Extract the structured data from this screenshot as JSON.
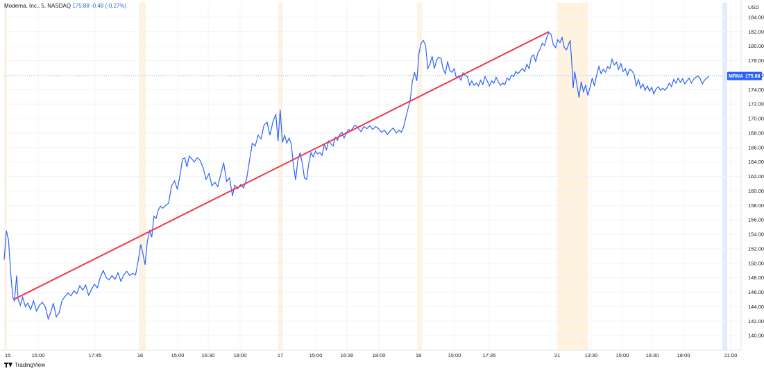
{
  "legend": {
    "symbol": "Moderna, Inc.",
    "interval": "5",
    "exchange": "NASDAQ",
    "close": "175.88",
    "change": "-0.48",
    "change_pct": "(-0.27%)"
  },
  "footer": {
    "brand": "TradingView"
  },
  "price_tag": {
    "symbol": "MRNA",
    "value": "175.88"
  },
  "currency": "USD",
  "colors": {
    "line": "#2962ff",
    "trend": "#f23645",
    "session": "#fff3e0",
    "session_blue": "#e3ecff",
    "grid": "#f0f3fa"
  },
  "chart_data": {
    "type": "line",
    "ylim": [
      138,
      186
    ],
    "yticks": [
      "140.00",
      "142.00",
      "144.00",
      "146.00",
      "148.00",
      "150.00",
      "152.00",
      "154.00",
      "156.00",
      "158.00",
      "160.00",
      "162.00",
      "164.00",
      "166.00",
      "168.00",
      "170.00",
      "172.00",
      "174.00",
      "176.00",
      "178.00",
      "180.00",
      "182.00",
      "184.00"
    ],
    "xticks": [
      "15",
      "15:00",
      "17:45",
      "16",
      "15:00",
      "16:30",
      "18:00",
      "17",
      "15:00",
      "16:30",
      "18:00",
      "18",
      "15:00",
      "17:35",
      "21",
      "13:30",
      "15:00",
      "16:30",
      "18:00",
      "21:00"
    ],
    "xrange": [
      0,
      1
    ],
    "series": [
      {
        "values": [
          [
            0.0,
            150.5
          ],
          [
            0.003,
            154.5
          ],
          [
            0.006,
            153.2
          ],
          [
            0.009,
            148.5
          ],
          [
            0.012,
            145.2
          ],
          [
            0.014,
            144.8
          ],
          [
            0.017,
            148.3
          ],
          [
            0.019,
            145.0
          ],
          [
            0.022,
            144.2
          ],
          [
            0.025,
            145.3
          ],
          [
            0.029,
            144.0
          ],
          [
            0.032,
            144.5
          ],
          [
            0.036,
            143.6
          ],
          [
            0.04,
            144.8
          ],
          [
            0.044,
            143.4
          ],
          [
            0.048,
            144.2
          ],
          [
            0.052,
            144.6
          ],
          [
            0.056,
            144.0
          ],
          [
            0.06,
            142.3
          ],
          [
            0.064,
            143.4
          ],
          [
            0.067,
            144.5
          ],
          [
            0.071,
            142.6
          ],
          [
            0.075,
            143.2
          ],
          [
            0.079,
            144.9
          ],
          [
            0.083,
            145.4
          ],
          [
            0.087,
            145.9
          ],
          [
            0.091,
            145.5
          ],
          [
            0.095,
            146.2
          ],
          [
            0.099,
            145.8
          ],
          [
            0.103,
            146.9
          ],
          [
            0.107,
            146.3
          ],
          [
            0.111,
            147.0
          ],
          [
            0.115,
            145.6
          ],
          [
            0.119,
            146.4
          ],
          [
            0.123,
            147.1
          ],
          [
            0.127,
            146.6
          ],
          [
            0.131,
            148.1
          ],
          [
            0.135,
            149.0
          ],
          [
            0.139,
            148.0
          ],
          [
            0.143,
            147.7
          ],
          [
            0.147,
            148.3
          ],
          [
            0.151,
            147.8
          ],
          [
            0.155,
            148.7
          ],
          [
            0.159,
            147.5
          ],
          [
            0.163,
            148.4
          ],
          [
            0.167,
            148.9
          ],
          [
            0.171,
            148.3
          ],
          [
            0.175,
            148.6
          ],
          [
            0.179,
            148.4
          ],
          [
            0.183,
            150.6
          ],
          [
            0.186,
            152.6
          ],
          [
            0.189,
            151.3
          ],
          [
            0.192,
            149.8
          ],
          [
            0.195,
            153.0
          ],
          [
            0.198,
            154.5
          ],
          [
            0.201,
            153.6
          ],
          [
            0.204,
            156.5
          ],
          [
            0.207,
            156.2
          ],
          [
            0.21,
            157.4
          ],
          [
            0.213,
            157.9
          ],
          [
            0.216,
            157.6
          ],
          [
            0.22,
            158.0
          ],
          [
            0.224,
            158.3
          ],
          [
            0.228,
            160.7
          ],
          [
            0.232,
            161.4
          ],
          [
            0.236,
            160.2
          ],
          [
            0.24,
            162.5
          ],
          [
            0.243,
            164.4
          ],
          [
            0.246,
            164.6
          ],
          [
            0.249,
            163.3
          ],
          [
            0.252,
            164.8
          ],
          [
            0.255,
            164.5
          ],
          [
            0.259,
            164.0
          ],
          [
            0.263,
            164.6
          ],
          [
            0.267,
            164.2
          ],
          [
            0.271,
            163.2
          ],
          [
            0.275,
            161.6
          ],
          [
            0.279,
            162.4
          ],
          [
            0.283,
            160.7
          ],
          [
            0.287,
            161.2
          ],
          [
            0.291,
            160.6
          ],
          [
            0.295,
            162.3
          ],
          [
            0.299,
            163.9
          ],
          [
            0.303,
            161.3
          ],
          [
            0.307,
            161.8
          ],
          [
            0.311,
            159.3
          ],
          [
            0.314,
            160.8
          ],
          [
            0.318,
            160.3
          ],
          [
            0.322,
            160.9
          ],
          [
            0.326,
            160.4
          ],
          [
            0.33,
            161.5
          ],
          [
            0.334,
            164.1
          ],
          [
            0.338,
            166.6
          ],
          [
            0.342,
            166.2
          ],
          [
            0.346,
            167.7
          ],
          [
            0.35,
            167.2
          ],
          [
            0.354,
            169.1
          ],
          [
            0.358,
            169.5
          ],
          [
            0.362,
            167.7
          ],
          [
            0.366,
            169.5
          ],
          [
            0.37,
            170.6
          ],
          [
            0.373,
            166.9
          ],
          [
            0.376,
            171.2
          ],
          [
            0.379,
            166.7
          ],
          [
            0.382,
            167.7
          ],
          [
            0.385,
            166.6
          ],
          [
            0.388,
            167.3
          ],
          [
            0.391,
            166.5
          ],
          [
            0.394,
            163.5
          ],
          [
            0.397,
            161.5
          ],
          [
            0.4,
            164.2
          ],
          [
            0.403,
            165.3
          ],
          [
            0.406,
            163.9
          ],
          [
            0.409,
            161.8
          ],
          [
            0.412,
            161.6
          ],
          [
            0.415,
            163.9
          ],
          [
            0.418,
            165.3
          ],
          [
            0.421,
            164.7
          ],
          [
            0.424,
            165.5
          ],
          [
            0.427,
            165.1
          ],
          [
            0.43,
            165.3
          ],
          [
            0.433,
            164.9
          ],
          [
            0.436,
            166.4
          ],
          [
            0.439,
            165.7
          ],
          [
            0.442,
            166.9
          ],
          [
            0.445,
            166.5
          ],
          [
            0.448,
            166.2
          ],
          [
            0.451,
            167.4
          ],
          [
            0.454,
            167.0
          ],
          [
            0.457,
            167.8
          ],
          [
            0.46,
            168.1
          ],
          [
            0.463,
            167.3
          ],
          [
            0.466,
            168.0
          ],
          [
            0.469,
            168.5
          ],
          [
            0.472,
            168.3
          ],
          [
            0.475,
            168.7
          ],
          [
            0.478,
            169.1
          ],
          [
            0.482,
            168.7
          ],
          [
            0.486,
            168.2
          ],
          [
            0.49,
            168.9
          ],
          [
            0.494,
            168.6
          ],
          [
            0.498,
            169.0
          ],
          [
            0.502,
            168.5
          ],
          [
            0.506,
            168.9
          ],
          [
            0.51,
            168.6
          ],
          [
            0.514,
            168.1
          ],
          [
            0.518,
            168.4
          ],
          [
            0.522,
            167.8
          ],
          [
            0.526,
            168.3
          ],
          [
            0.53,
            168.7
          ],
          [
            0.534,
            168.0
          ],
          [
            0.538,
            168.4
          ],
          [
            0.541,
            168.1
          ],
          [
            0.544,
            168.8
          ],
          [
            0.547,
            170.1
          ],
          [
            0.55,
            171.3
          ],
          [
            0.553,
            172.5
          ],
          [
            0.556,
            175.1
          ],
          [
            0.559,
            176.4
          ],
          [
            0.562,
            175.2
          ],
          [
            0.565,
            179.0
          ],
          [
            0.568,
            180.4
          ],
          [
            0.571,
            180.8
          ],
          [
            0.574,
            180.1
          ],
          [
            0.577,
            176.9
          ],
          [
            0.58,
            177.5
          ],
          [
            0.583,
            178.6
          ],
          [
            0.586,
            176.9
          ],
          [
            0.589,
            178.1
          ],
          [
            0.592,
            178.5
          ],
          [
            0.595,
            178.3
          ],
          [
            0.598,
            176.8
          ],
          [
            0.601,
            176.2
          ],
          [
            0.604,
            177.9
          ],
          [
            0.607,
            176.6
          ],
          [
            0.61,
            176.4
          ],
          [
            0.613,
            176.9
          ],
          [
            0.616,
            175.6
          ],
          [
            0.619,
            175.9
          ],
          [
            0.622,
            175.3
          ],
          [
            0.625,
            176.3
          ],
          [
            0.628,
            176.0
          ],
          [
            0.631,
            175.8
          ],
          [
            0.634,
            174.6
          ],
          [
            0.637,
            175.2
          ],
          [
            0.64,
            174.6
          ],
          [
            0.643,
            174.9
          ],
          [
            0.646,
            174.5
          ],
          [
            0.649,
            175.3
          ],
          [
            0.652,
            174.7
          ],
          [
            0.655,
            175.8
          ],
          [
            0.658,
            175.2
          ],
          [
            0.661,
            174.5
          ],
          [
            0.664,
            175.2
          ],
          [
            0.667,
            174.9
          ],
          [
            0.67,
            175.7
          ],
          [
            0.673,
            175.1
          ],
          [
            0.676,
            174.6
          ],
          [
            0.679,
            174.9
          ],
          [
            0.682,
            174.7
          ],
          [
            0.685,
            175.6
          ],
          [
            0.688,
            175.3
          ],
          [
            0.691,
            176.0
          ],
          [
            0.694,
            175.8
          ],
          [
            0.697,
            176.5
          ],
          [
            0.7,
            176.2
          ],
          [
            0.703,
            176.6
          ],
          [
            0.706,
            176.9
          ],
          [
            0.709,
            176.5
          ],
          [
            0.712,
            177.5
          ],
          [
            0.715,
            176.9
          ],
          [
            0.718,
            178.5
          ],
          [
            0.721,
            178.8
          ],
          [
            0.724,
            177.9
          ],
          [
            0.727,
            179.1
          ],
          [
            0.73,
            179.6
          ],
          [
            0.733,
            180.4
          ],
          [
            0.736,
            180.1
          ],
          [
            0.739,
            181.2
          ],
          [
            0.742,
            181.9
          ],
          [
            0.745,
            181.6
          ],
          [
            0.748,
            180.2
          ],
          [
            0.751,
            179.8
          ],
          [
            0.754,
            180.9
          ],
          [
            0.757,
            180.5
          ],
          [
            0.76,
            181.2
          ],
          [
            0.763,
            179.8
          ],
          [
            0.766,
            179.5
          ],
          [
            0.769,
            180.3
          ],
          [
            0.771,
            180.8
          ],
          [
            0.773,
            178.0
          ],
          [
            0.775,
            174.2
          ],
          [
            0.777,
            176.5
          ],
          [
            0.78,
            174.8
          ],
          [
            0.783,
            172.9
          ],
          [
            0.786,
            175.1
          ],
          [
            0.789,
            173.7
          ],
          [
            0.792,
            174.6
          ],
          [
            0.795,
            173.2
          ],
          [
            0.798,
            174.3
          ],
          [
            0.801,
            175.6
          ],
          [
            0.804,
            174.5
          ],
          [
            0.807,
            176.0
          ],
          [
            0.81,
            177.2
          ],
          [
            0.813,
            176.2
          ],
          [
            0.816,
            176.8
          ],
          [
            0.819,
            176.4
          ],
          [
            0.822,
            177.2
          ],
          [
            0.825,
            176.9
          ],
          [
            0.828,
            178.2
          ],
          [
            0.831,
            177.4
          ],
          [
            0.834,
            177.8
          ],
          [
            0.837,
            176.8
          ],
          [
            0.84,
            177.6
          ],
          [
            0.843,
            176.5
          ],
          [
            0.846,
            176.9
          ],
          [
            0.849,
            176.0
          ],
          [
            0.852,
            176.8
          ],
          [
            0.855,
            176.6
          ],
          [
            0.858,
            176.1
          ],
          [
            0.861,
            174.5
          ],
          [
            0.864,
            175.4
          ],
          [
            0.867,
            174.2
          ],
          [
            0.87,
            174.8
          ],
          [
            0.873,
            173.9
          ],
          [
            0.876,
            174.5
          ],
          [
            0.879,
            173.8
          ],
          [
            0.882,
            174.3
          ],
          [
            0.885,
            173.4
          ],
          [
            0.888,
            174.1
          ],
          [
            0.891,
            174.4
          ],
          [
            0.894,
            173.9
          ],
          [
            0.897,
            174.2
          ],
          [
            0.9,
            173.9
          ],
          [
            0.903,
            174.3
          ],
          [
            0.906,
            174.9
          ],
          [
            0.909,
            174.4
          ],
          [
            0.912,
            175.4
          ],
          [
            0.915,
            174.9
          ],
          [
            0.918,
            175.6
          ],
          [
            0.921,
            175.0
          ],
          [
            0.924,
            175.5
          ],
          [
            0.927,
            174.8
          ],
          [
            0.93,
            175.2
          ],
          [
            0.933,
            175.6
          ],
          [
            0.936,
            174.9
          ],
          [
            0.939,
            175.4
          ],
          [
            0.942,
            175.7
          ],
          [
            0.945,
            175.9
          ],
          [
            0.948,
            175.5
          ],
          [
            0.951,
            174.8
          ],
          [
            0.954,
            175.3
          ],
          [
            0.957,
            175.6
          ],
          [
            0.96,
            175.9
          ]
        ]
      }
    ],
    "trendline": [
      [
        0.013,
        145.0
      ],
      [
        0.742,
        182.0
      ]
    ],
    "current_price": 175.88
  }
}
